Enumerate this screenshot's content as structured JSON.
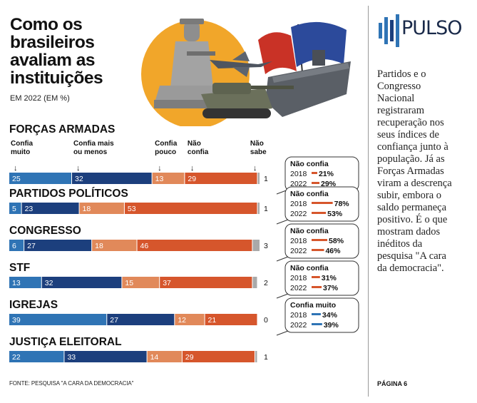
{
  "title": "Como os brasileiros avaliam as instituições",
  "subtitle": "EM 2022 (EM %)",
  "chart_data": {
    "type": "bar",
    "orientation": "horizontal-stacked",
    "title": "Como os brasileiros avaliam as instituições",
    "subtitle": "EM 2022 (EM %)",
    "series_names": [
      "Confia muito",
      "Confia mais ou menos",
      "Confia pouco",
      "Não confia",
      "Não sabe"
    ],
    "series_colors": [
      "#2f74b5",
      "#1c3f7d",
      "#e1895a",
      "#d6562c",
      "#a9a9a9"
    ],
    "xlim": [
      0,
      100
    ],
    "rows": [
      {
        "name": "FORÇAS ARMADAS",
        "values": [
          25,
          32,
          13,
          29,
          1
        ],
        "box": {
          "title": "Não confia",
          "y2018": "2018",
          "v2018": 21,
          "l2018": "21%",
          "y2022": "2022",
          "v2022": 29,
          "l2022": "29%",
          "color": "#d6562c"
        }
      },
      {
        "name": "PARTIDOS POLÍTICOS",
        "values": [
          5,
          23,
          18,
          53,
          1
        ],
        "box": {
          "title": "Não confia",
          "y2018": "2018",
          "v2018": 78,
          "l2018": "78%",
          "y2022": "2022",
          "v2022": 53,
          "l2022": "53%",
          "color": "#d6562c"
        }
      },
      {
        "name": "CONGRESSO",
        "values": [
          6,
          27,
          18,
          46,
          3
        ],
        "box": {
          "title": "Não confia",
          "y2018": "2018",
          "v2018": 58,
          "l2018": "58%",
          "y2022": "2022",
          "v2022": 46,
          "l2022": "46%",
          "color": "#d6562c"
        }
      },
      {
        "name": "STF",
        "values": [
          13,
          32,
          15,
          37,
          2
        ],
        "box": {
          "title": "Não confia",
          "y2018": "2018",
          "v2018": 31,
          "l2018": "31%",
          "y2022": "2022",
          "v2022": 37,
          "l2022": "37%",
          "color": "#d6562c"
        }
      },
      {
        "name": "IGREJAS",
        "values": [
          39,
          27,
          12,
          21,
          0
        ],
        "box": {
          "title": "Confia muito",
          "y2018": "2018",
          "v2018": 34,
          "l2018": "34%",
          "y2022": "2022",
          "v2022": 39,
          "l2022": "39%",
          "color": "#2f74b5"
        }
      },
      {
        "name": "JUSTIÇA ELEITORAL",
        "values": [
          22,
          33,
          14,
          29,
          1
        ],
        "box": null
      }
    ],
    "column_headers": [
      {
        "lines": [
          "Confia",
          "muito"
        ]
      },
      {
        "lines": [
          "Confia mais",
          "ou menos"
        ]
      },
      {
        "lines": [
          "Confia",
          "pouco"
        ]
      },
      {
        "lines": [
          "Não",
          "confia"
        ]
      },
      {
        "lines": [
          "Não",
          "sabe"
        ]
      }
    ],
    "source": "FONTE: PESQUISA \"A CARA DA DEMOCRACIA\""
  },
  "side": {
    "brand": "PULSO",
    "text": "Partidos e o Congresso Nacional registraram recuperação nos seus índices de confiança junto à população. Já as Forças Armadas viram a descrença subir, embora o saldo permaneça positivo. É o que mostram dados inéditos da pesquisa \"A cara da democracia\".",
    "page": "PÁGINA 6"
  },
  "icons": [
    "scales-of-justice-statue-icon",
    "flag-icon",
    "fighter-jet-icon",
    "tank-icon",
    "aircraft-carrier-icon",
    "pulso-bars-icon"
  ]
}
